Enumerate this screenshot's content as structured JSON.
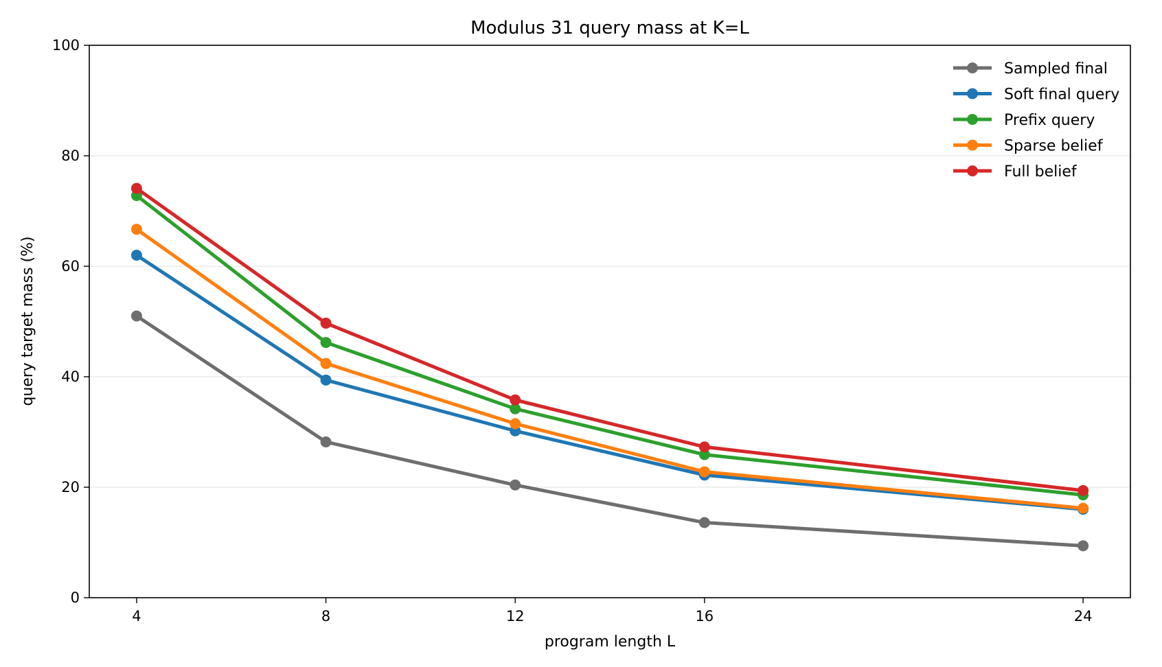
{
  "chart_data": {
    "type": "line",
    "title": "Modulus 31 query mass at K=L",
    "xlabel": "program length L",
    "ylabel": "query target mass (%)",
    "x": [
      4,
      8,
      12,
      16,
      24
    ],
    "xlim": [
      3,
      25
    ],
    "ylim": [
      0,
      100
    ],
    "yticks": [
      0,
      20,
      40,
      60,
      80,
      100
    ],
    "grid": "horizontal",
    "legend_position": "top-right",
    "series": [
      {
        "name": "Sampled final",
        "color": "#6e6e6e",
        "values": [
          51.0,
          28.2,
          20.4,
          13.6,
          9.4
        ]
      },
      {
        "name": "Soft final query",
        "color": "#1f77b4",
        "values": [
          62.0,
          39.4,
          30.2,
          22.2,
          16.0
        ]
      },
      {
        "name": "Prefix query",
        "color": "#2ca02c",
        "values": [
          72.8,
          46.2,
          34.2,
          25.9,
          18.6
        ]
      },
      {
        "name": "Sparse belief",
        "color": "#ff7f0e",
        "values": [
          66.7,
          42.4,
          31.5,
          22.8,
          16.2
        ]
      },
      {
        "name": "Full belief",
        "color": "#d62728",
        "values": [
          74.1,
          49.7,
          35.8,
          27.3,
          19.4
        ]
      }
    ]
  }
}
